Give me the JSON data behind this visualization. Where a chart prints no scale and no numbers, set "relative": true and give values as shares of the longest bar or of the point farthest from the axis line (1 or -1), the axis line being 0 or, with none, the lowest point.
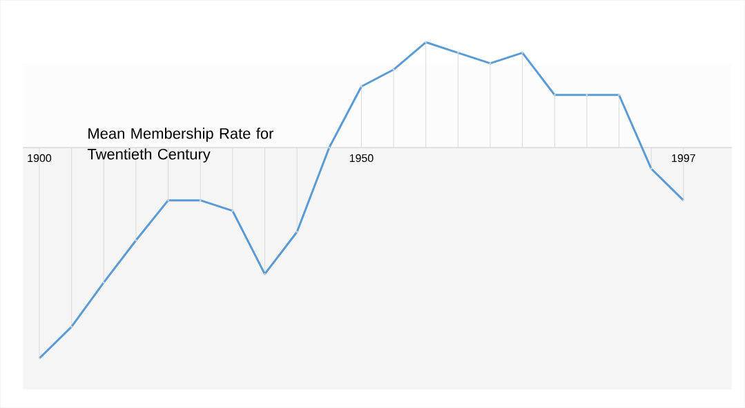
{
  "chart_data": {
    "type": "line",
    "title": "Mean Membership Rate for Twentieth Century",
    "relative": true,
    "categories": [
      "1900",
      null,
      null,
      null,
      null,
      null,
      null,
      null,
      null,
      null,
      "1950",
      null,
      null,
      null,
      null,
      null,
      null,
      null,
      null,
      null,
      "1997"
    ],
    "series": [
      {
        "color": "#5b9bd5",
        "values": [
          -1,
          -0.85,
          -0.64,
          -0.44,
          -0.25,
          -0.25,
          -0.3,
          -0.6,
          -0.4,
          0,
          0.29,
          0.37,
          0.5,
          0.45,
          0.4,
          0.45,
          0.25,
          0.25,
          0.25,
          -0.1,
          -0.25
        ]
      },
      {
        "type": "lollipop",
        "color": "#d9d9d9",
        "values": [
          -1,
          -0.85,
          -0.64,
          -0.44,
          -0.25,
          -0.25,
          -0.3,
          -0.6,
          -0.4,
          0,
          0.29,
          0.37,
          0.5,
          0.45,
          0.4,
          0.45,
          0.25,
          0.25,
          0.25,
          -0.1,
          -0.25
        ]
      }
    ],
    "marker": "none",
    "line_style": "solid"
  }
}
